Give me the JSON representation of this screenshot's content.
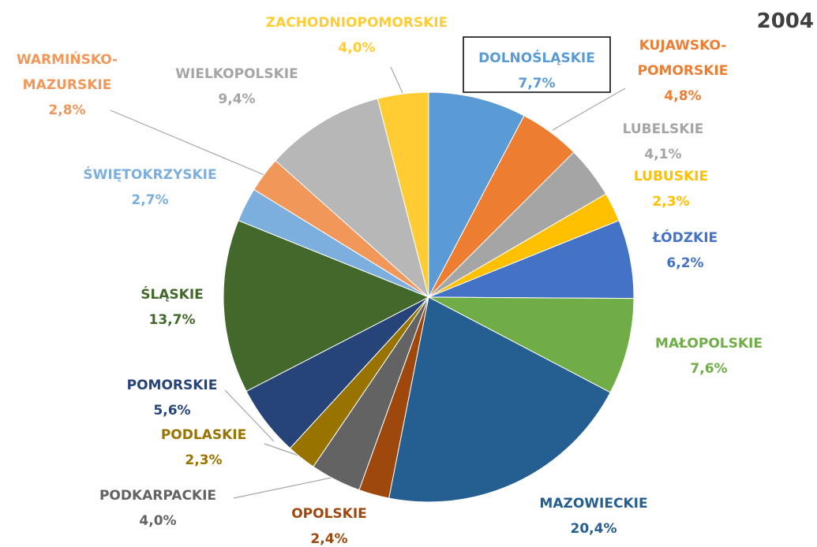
{
  "chart_data": {
    "type": "pie",
    "title": "2004",
    "categories": [
      "DOLNOŚLĄSKIE",
      "KUJAWSKO-POMORSKIE",
      "LUBELSKIE",
      "LUBUSKIE",
      "ŁÓDZKIE",
      "MAŁOPOLSKIE",
      "MAZOWIECKIE",
      "OPOLSKIE",
      "PODKARPACKIE",
      "PODLASKIE",
      "POMORSKIE",
      "ŚLĄSKIE",
      "ŚWIĘTOKRZYSKIE",
      "WARMIŃSKO-MAZURSKIE",
      "WIELKOPOLSKIE",
      "ZACHODNIOPOMORSKIE"
    ],
    "values": [
      7.7,
      4.8,
      4.1,
      2.3,
      6.2,
      7.6,
      20.4,
      2.4,
      4.0,
      2.3,
      5.6,
      13.7,
      2.7,
      2.8,
      9.4,
      4.0
    ],
    "value_labels": [
      "7,7%",
      "4,8%",
      "4,1%",
      "2,3%",
      "6,2%",
      "7,6%",
      "20,4%",
      "2,4%",
      "4,0%",
      "2,3%",
      "5,6%",
      "13,7%",
      "2,7%",
      "2,8%",
      "9,4%",
      "4,0%"
    ],
    "colors": [
      "#5b9bd5",
      "#ed7d31",
      "#a5a5a5",
      "#ffc000",
      "#4472c4",
      "#70ad47",
      "#255e91",
      "#9e480e",
      "#636363",
      "#997300",
      "#264478",
      "#43682b",
      "#7cafdd",
      "#f1975a",
      "#b7b7b7",
      "#ffcd33"
    ]
  }
}
